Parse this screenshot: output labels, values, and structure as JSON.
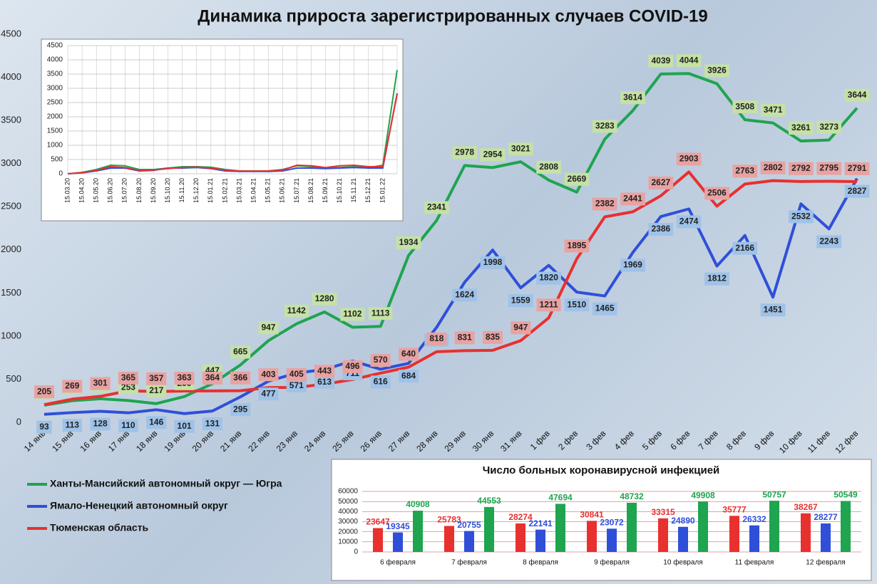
{
  "chart_data": [
    {
      "type": "line",
      "title": "Динамика прироста зарегистрированных случаев COVID-19",
      "categories": [
        "14 янв",
        "15 янв",
        "16 янв",
        "17 янв",
        "18 янв",
        "19 янв",
        "20 янв",
        "21 янв",
        "22 янв",
        "23 янв",
        "24 янв",
        "25 янв",
        "26 янв",
        "27 янв",
        "28 янв",
        "29 янв",
        "30 янв",
        "31 янв",
        "1 фев",
        "2 фев",
        "3 фев",
        "4 фев",
        "5 фев",
        "6 фев",
        "7 фев",
        "8 фев",
        "9 фев",
        "10 фев",
        "11 фев",
        "12 фев"
      ],
      "series": [
        {
          "name": "Ханты-Мансийский автономный округ — Югра",
          "color": "#1fa44f",
          "values": [
            199,
            251,
            273,
            253,
            217,
            299,
            447,
            665,
            947,
            1142,
            1280,
            1102,
            1113,
            1934,
            2341,
            2978,
            2954,
            3021,
            2808,
            2669,
            3283,
            3614,
            4039,
            4044,
            3926,
            3508,
            3471,
            3261,
            3273,
            3644
          ]
        },
        {
          "name": "Ямало-Ненецкий автономный округ",
          "color": "#2f4fd9",
          "values": [
            93,
            113,
            128,
            110,
            146,
            101,
            131,
            295,
            477,
            571,
            613,
            711,
            616,
            684,
            1101,
            1624,
            1998,
            1559,
            1820,
            1510,
            1465,
            1969,
            2386,
            2474,
            1812,
            2166,
            1451,
            2532,
            2243,
            2827
          ]
        },
        {
          "name": "Тюменская область",
          "color": "#e8302f",
          "values": [
            205,
            269,
            301,
            365,
            357,
            363,
            364,
            366,
            403,
            405,
            443,
            496,
            570,
            640,
            818,
            831,
            835,
            947,
            1211,
            1895,
            2382,
            2441,
            2627,
            2903,
            2506,
            2763,
            2802,
            2792,
            2795,
            2791
          ]
        }
      ],
      "ylim": [
        0,
        4500
      ],
      "yticks": [
        0,
        500,
        1000,
        1500,
        2000,
        2500,
        3000,
        3500,
        4000,
        4500
      ],
      "grid": false
    },
    {
      "type": "line",
      "categories": [
        "15.03.20",
        "15.04.20",
        "15.05.20",
        "15.06.20",
        "15.07.20",
        "15.08.20",
        "15.09.20",
        "15.10.20",
        "15.11.20",
        "15.12.20",
        "15.01.21",
        "15.02.21",
        "15.03.21",
        "15.04.21",
        "15.05.21",
        "15.06.21",
        "15.07.21",
        "15.08.21",
        "15.09.21",
        "15.10.21",
        "15.11.21",
        "15.12.21",
        "15.01.22",
        null
      ],
      "series": [
        {
          "color": "#1fa44f",
          "values": [
            0,
            50,
            150,
            300,
            280,
            150,
            150,
            200,
            250,
            250,
            230,
            150,
            100,
            100,
            100,
            150,
            280,
            250,
            200,
            220,
            250,
            220,
            300,
            3644
          ]
        },
        {
          "color": "#2f4fd9",
          "values": [
            0,
            30,
            100,
            200,
            200,
            100,
            120,
            200,
            200,
            220,
            180,
            100,
            80,
            80,
            80,
            100,
            200,
            200,
            180,
            200,
            220,
            200,
            200,
            2827
          ]
        },
        {
          "color": "#e8302f",
          "values": [
            0,
            40,
            120,
            250,
            220,
            120,
            130,
            180,
            220,
            230,
            200,
            130,
            100,
            90,
            100,
            130,
            300,
            280,
            220,
            280,
            300,
            250,
            250,
            2791
          ]
        }
      ],
      "ylim": [
        0,
        4500
      ],
      "yticks": [
        0,
        500,
        1000,
        1500,
        2000,
        2500,
        3000,
        3500,
        4000,
        4500
      ],
      "grid": true
    },
    {
      "type": "bar",
      "title": "Число больных коронавирусной инфекцией",
      "categories": [
        "6 февраля",
        "7 февраля",
        "8 февраля",
        "9 февраля",
        "10 февраля",
        "11 февраля",
        "12 февраля"
      ],
      "series": [
        {
          "color": "#e8302f",
          "values": [
            23647,
            25783,
            28274,
            30841,
            33315,
            35777,
            38267
          ]
        },
        {
          "color": "#2f4fd9",
          "values": [
            19345,
            20755,
            22141,
            23072,
            24890,
            26332,
            28277
          ]
        },
        {
          "color": "#1fa44f",
          "values": [
            40908,
            44553,
            47694,
            48732,
            49908,
            50757,
            50549
          ]
        }
      ],
      "ylim": [
        0,
        60000
      ],
      "yticks": [
        0,
        10000,
        20000,
        30000,
        40000,
        50000,
        60000
      ],
      "grid": true
    }
  ]
}
